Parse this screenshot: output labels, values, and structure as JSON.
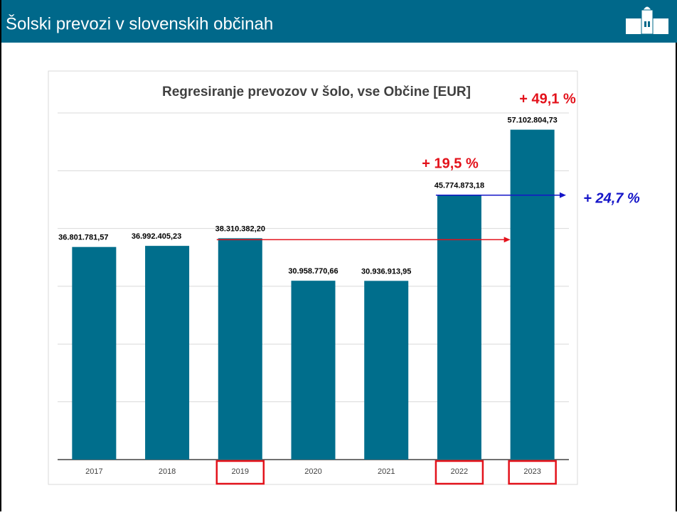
{
  "header": {
    "title": "Šolski prevozi v slovenskih občinah"
  },
  "chart_data": {
    "type": "bar",
    "title": "Regresiranje prevozov v šolo, vse Občine [EUR]",
    "categories": [
      "2017",
      "2018",
      "2019",
      "2020",
      "2021",
      "2022",
      "2023"
    ],
    "values": [
      36801781.57,
      36992405.23,
      38310382.2,
      30958770.66,
      30936913.95,
      45774873.18,
      57102804.73
    ],
    "value_labels": [
      "36.801.781,57",
      "36.992.405,23",
      "38.310.382,20",
      "30.958.770,66",
      "30.936.913,95",
      "45.774.873,18",
      "57.102.804,73"
    ],
    "color": "#006e8c",
    "ylim": [
      0,
      60000000
    ],
    "yticks": [
      0,
      10000000,
      20000000,
      30000000,
      40000000,
      50000000,
      60000000
    ],
    "grid": true,
    "highlighted": [
      2,
      5,
      6
    ],
    "highlight_color": "#e3121b",
    "annotations": [
      {
        "text": "+ 49,1 %",
        "color": "#e3121b"
      },
      {
        "text": "+ 19,5 %",
        "color": "#e3121b"
      },
      {
        "text": "+ 24,7 %",
        "color": "#1515c8"
      }
    ]
  }
}
